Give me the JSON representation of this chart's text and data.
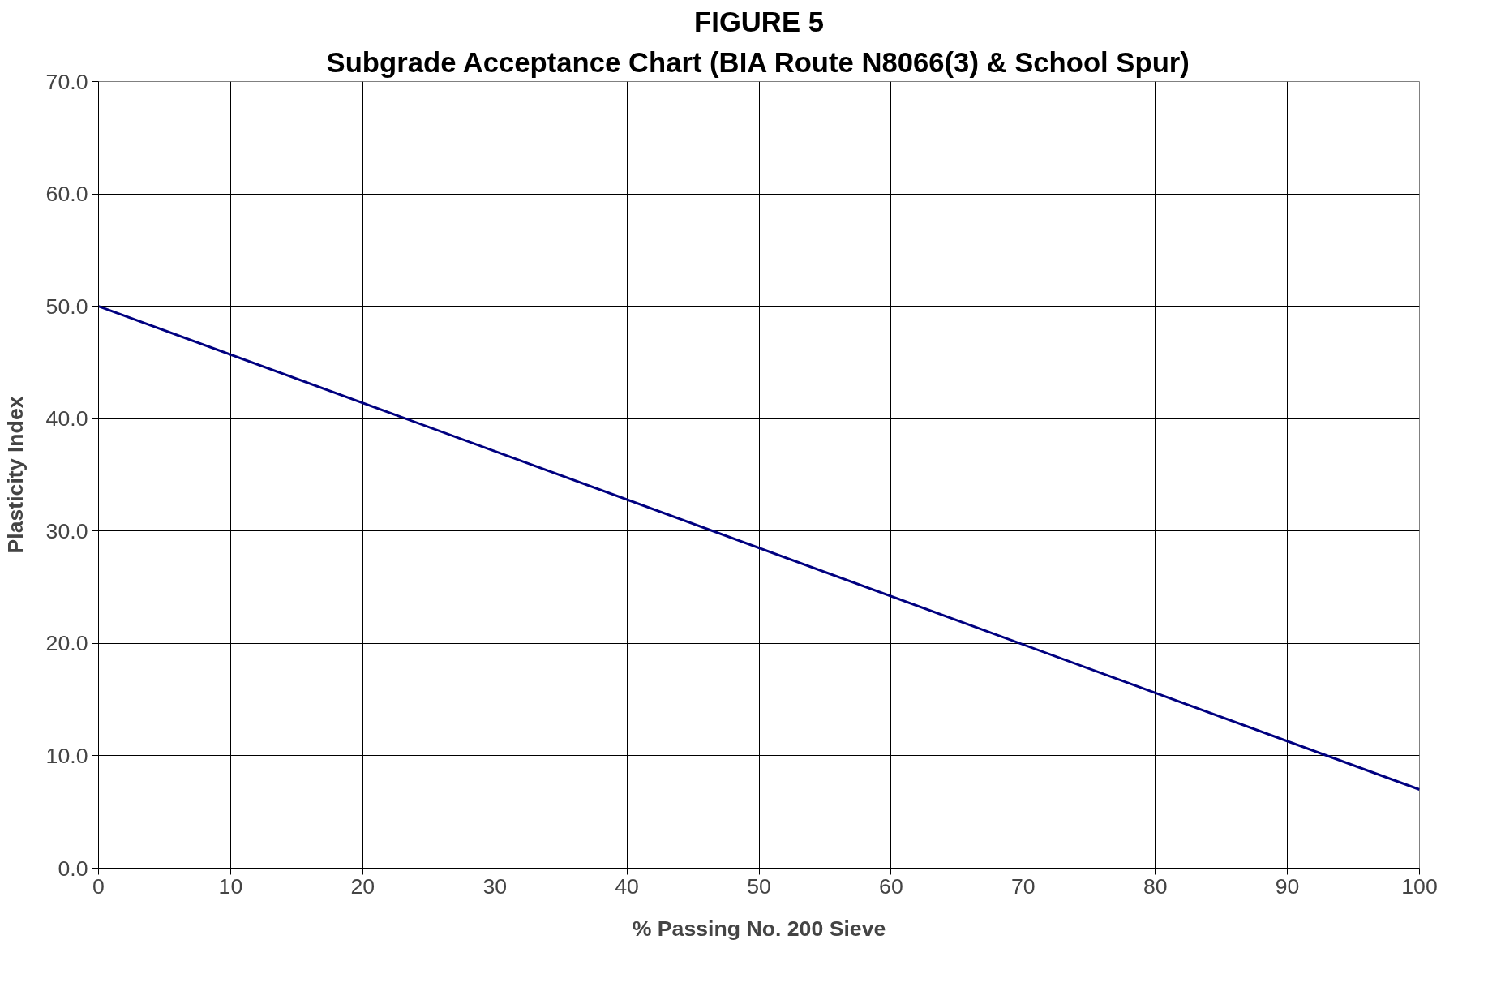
{
  "chart_data": {
    "type": "line",
    "title": "FIGURE 5",
    "subtitle": "Subgrade Acceptance Chart (BIA Route N8066(3) & School Spur)",
    "xlabel": "% Passing No. 200 Sieve",
    "ylabel": "Plasticity Index",
    "x": [
      0,
      100
    ],
    "series": [
      {
        "color": "#000080",
        "values": [
          50.0,
          7.0
        ]
      }
    ],
    "xlim": [
      0,
      100
    ],
    "xticks": [
      0,
      10,
      20,
      30,
      40,
      50,
      60,
      70,
      80,
      90,
      100
    ],
    "ylim": [
      0,
      70
    ],
    "yticks": [
      {
        "value": 0,
        "label": "0.0"
      },
      {
        "value": 10,
        "label": "10.0"
      },
      {
        "value": 20,
        "label": "20.0"
      },
      {
        "value": 30,
        "label": "30.0"
      },
      {
        "value": 40,
        "label": "40.0"
      },
      {
        "value": 50,
        "label": "50.0"
      },
      {
        "value": 60,
        "label": "60.0"
      },
      {
        "value": 70,
        "label": "70.0"
      }
    ],
    "grid": true,
    "marker": "none",
    "line_style": "solid"
  }
}
